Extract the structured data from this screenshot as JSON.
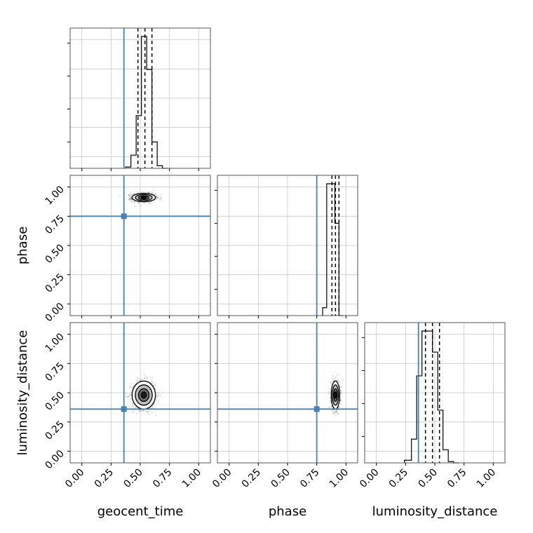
{
  "chart_data": {
    "type": "corner",
    "parameters": [
      "geocent_time",
      "phase",
      "luminosity_distance"
    ],
    "axis_range": [
      -0.1,
      1.1
    ],
    "tick_values": [
      0.0,
      0.25,
      0.5,
      0.75,
      1.0
    ],
    "tick_labels": [
      "0.00",
      "0.25",
      "0.50",
      "0.75",
      "1.00"
    ],
    "grid": true,
    "truth_color": "#4682b4",
    "truths": {
      "geocent_time": 0.36,
      "phase": 0.75,
      "luminosity_distance": 0.36
    },
    "histograms": [
      {
        "parameter": "geocent_time",
        "bin_edges": [
          0.375,
          0.42,
          0.465,
          0.51,
          0.555,
          0.6,
          0.645,
          0.69,
          0.735
        ],
        "counts": [
          1,
          10,
          40,
          100,
          75,
          20,
          2,
          0
        ],
        "quantiles": [
          0.48,
          0.54,
          0.6
        ]
      },
      {
        "parameter": "phase",
        "bin_edges": [
          0.8,
          0.835,
          0.87,
          0.905,
          0.94,
          0.975
        ],
        "counts": [
          6,
          100,
          100,
          70,
          0
        ],
        "quantiles": [
          0.88,
          0.91,
          0.94
        ]
      },
      {
        "parameter": "luminosity_distance",
        "bin_edges": [
          0.24,
          0.3,
          0.345,
          0.39,
          0.435,
          0.48,
          0.525,
          0.57,
          0.615,
          0.66,
          0.705
        ],
        "counts": [
          2,
          18,
          66,
          100,
          100,
          84,
          40,
          10,
          1,
          0
        ],
        "quantiles": [
          0.42,
          0.48,
          0.54
        ]
      }
    ],
    "scatter_panels": [
      {
        "x": "geocent_time",
        "y": "phase",
        "center": [
          0.53,
          0.91
        ],
        "spread": [
          0.05,
          0.018
        ]
      },
      {
        "x": "geocent_time",
        "y": "luminosity_distance",
        "center": [
          0.53,
          0.48
        ],
        "spread": [
          0.05,
          0.06
        ]
      },
      {
        "x": "phase",
        "y": "luminosity_distance",
        "center": [
          0.91,
          0.48
        ],
        "spread": [
          0.018,
          0.06
        ]
      }
    ]
  }
}
